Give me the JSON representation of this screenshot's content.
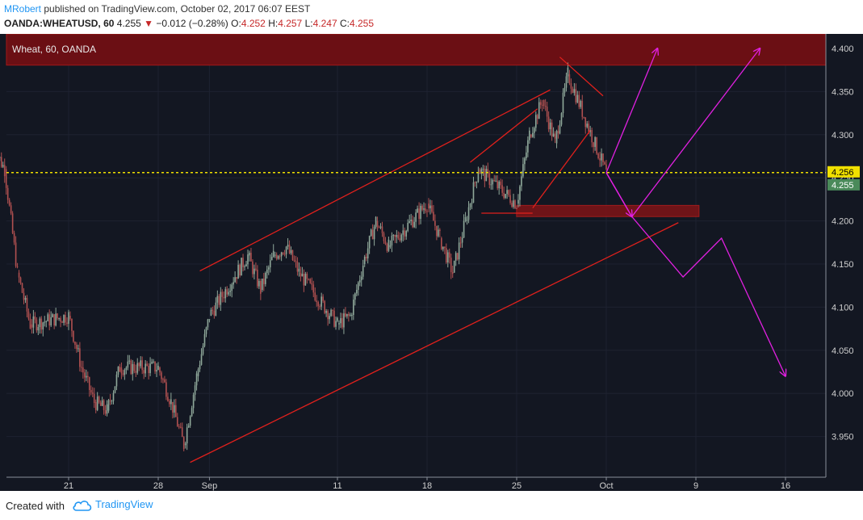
{
  "header": {
    "author": "MRobert",
    "published": "published on TradingView.com, October 02, 2017 06:07 EEST",
    "symbol": "OANDA:WHEATUSD, 60",
    "last": "4.255",
    "change_arrow": "▼",
    "change": "−0.012 (−0.28%)",
    "o_label": "O:",
    "o": "4.252",
    "h_label": "H:",
    "h": "4.257",
    "l_label": "L:",
    "l": "4.247",
    "c_label": "C:",
    "c": "4.255"
  },
  "footer": {
    "created_with": "Created with",
    "brand": "TradingView"
  },
  "colors": {
    "background": "#131722",
    "bull": "#8fa89a",
    "bear": "#b05050",
    "trendline": "#e0201c",
    "projection": "#e020e0",
    "price_line": "#f0e000",
    "banner": "#6b0f14"
  },
  "chart_data": {
    "type": "candlestick",
    "title": "Wheat, 60, OANDA",
    "ylim": [
      3.91,
      4.41
    ],
    "y_ticks": [
      "4.400",
      "4.350",
      "4.300",
      "4.250",
      "4.200",
      "4.150",
      "4.100",
      "4.050",
      "4.000",
      "3.950"
    ],
    "x_ticks": [
      "21",
      "28",
      "Sep",
      "11",
      "18",
      "25",
      "Oct",
      "9",
      "16"
    ],
    "price_label_current": "4.256",
    "price_label_last": "4.255",
    "current_price": 4.256,
    "last_price": 4.255,
    "series": [
      {
        "name": "close",
        "points": [
          [
            "Aug 15",
            4.29
          ],
          [
            "Aug 16",
            4.26
          ],
          [
            "Aug 17",
            4.14
          ],
          [
            "Aug 18",
            4.08
          ],
          [
            "Aug 21",
            4.09
          ],
          [
            "Aug 22",
            4.03
          ],
          [
            "Aug 23",
            3.99
          ],
          [
            "Aug 24",
            3.98
          ],
          [
            "Aug 25",
            4.03
          ],
          [
            "Aug 28",
            4.03
          ],
          [
            "Aug 29",
            3.99
          ],
          [
            "Aug 30",
            3.94
          ],
          [
            "Aug 31",
            4.02
          ],
          [
            "Sep 1",
            4.09
          ],
          [
            "Sep 4",
            4.16
          ],
          [
            "Sep 5",
            4.12
          ],
          [
            "Sep 6",
            4.16
          ],
          [
            "Sep 7",
            4.17
          ],
          [
            "Sep 8",
            4.14
          ],
          [
            "Sep 11",
            4.08
          ],
          [
            "Sep 12",
            4.09
          ],
          [
            "Sep 13",
            4.15
          ],
          [
            "Sep 14",
            4.2
          ],
          [
            "Sep 15",
            4.17
          ],
          [
            "Sep 18",
            4.22
          ],
          [
            "Sep 19",
            4.18
          ],
          [
            "Sep 20",
            4.14
          ],
          [
            "Sep 21",
            4.2
          ],
          [
            "Sep 22",
            4.26
          ],
          [
            "Sep 25",
            4.22
          ],
          [
            "Sep 26",
            4.3
          ],
          [
            "Sep 27",
            4.34
          ],
          [
            "Sep 28",
            4.29
          ],
          [
            "Sep 29",
            4.37
          ],
          [
            "Oct 2",
            4.255
          ]
        ]
      }
    ],
    "annotations": {
      "channel": "rising channel (red trendlines)",
      "support_zone": [
        4.205,
        4.218
      ],
      "resistance_zone": [
        4.39,
        4.41
      ],
      "projections": [
        {
          "label": "bullish path A",
          "points": [
            [
              "Oct 2",
              4.256
            ],
            [
              "Oct 6",
              4.4
            ]
          ]
        },
        {
          "label": "bullish path B",
          "points": [
            [
              "Oct 2",
              4.256
            ],
            [
              "Oct 4",
              4.205
            ],
            [
              "Oct 14",
              4.4
            ]
          ]
        },
        {
          "label": "bearish path",
          "points": [
            [
              "Oct 2",
              4.256
            ],
            [
              "Oct 4",
              4.205
            ],
            [
              "Oct 8",
              4.135
            ],
            [
              "Oct 11",
              4.18
            ],
            [
              "Oct 16",
              4.02
            ]
          ]
        }
      ]
    }
  }
}
